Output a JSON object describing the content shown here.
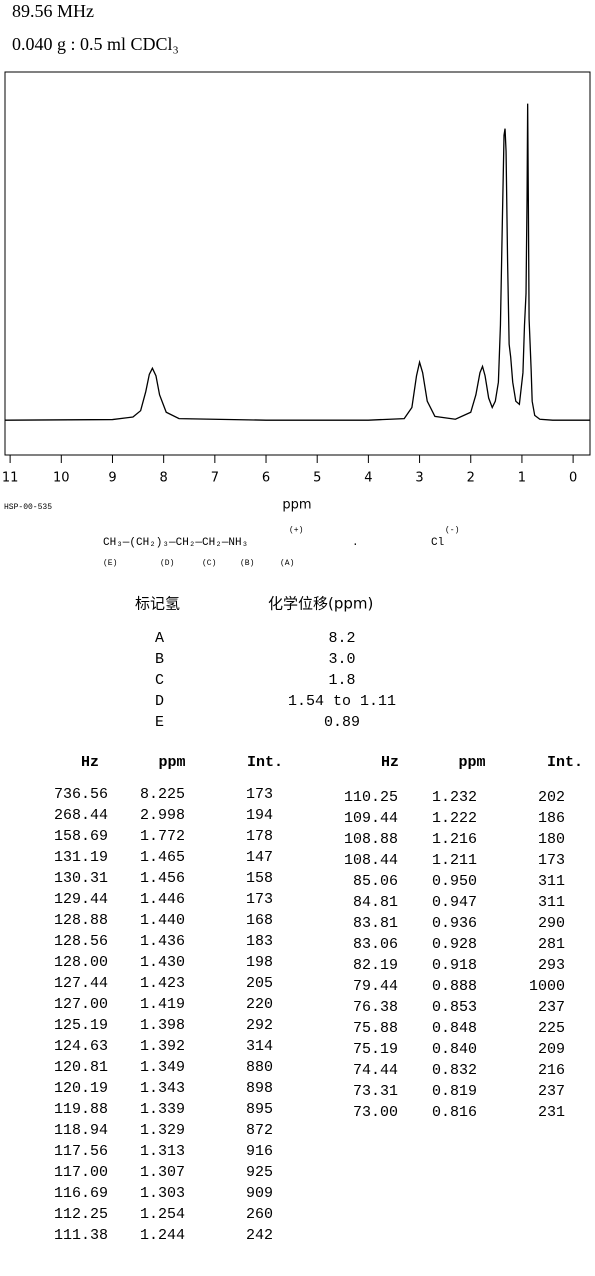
{
  "header": {
    "frequency": "89.56 MHz",
    "sample": "0.040 g : 0.5 ml CDCl₃"
  },
  "chart_data": {
    "type": "line",
    "x_label": "ppm",
    "code": "HSP-00-535",
    "color": "#000000",
    "xlim": [
      11.1,
      -0.33
    ],
    "ylim": [
      -110,
      1100
    ],
    "xticks": [
      11,
      10,
      9,
      8,
      7,
      6,
      5,
      4,
      3,
      2,
      1,
      0
    ],
    "x": [
      11.1,
      9.0,
      8.6,
      8.45,
      8.35,
      8.28,
      8.22,
      8.15,
      8.08,
      7.95,
      7.7,
      6.0,
      4.0,
      3.3,
      3.15,
      3.06,
      3.0,
      2.94,
      2.85,
      2.7,
      2.3,
      2.0,
      1.9,
      1.82,
      1.77,
      1.72,
      1.65,
      1.58,
      1.52,
      1.46,
      1.42,
      1.38,
      1.35,
      1.33,
      1.31,
      1.28,
      1.25,
      1.22,
      1.18,
      1.12,
      1.05,
      0.98,
      0.95,
      0.92,
      0.9,
      0.888,
      0.875,
      0.86,
      0.84,
      0.82,
      0.8,
      0.75,
      0.65,
      0.4,
      -0.33
    ],
    "values": [
      0,
      2,
      10,
      30,
      90,
      145,
      164,
      140,
      80,
      25,
      5,
      0,
      0,
      5,
      40,
      140,
      183,
      150,
      60,
      12,
      3,
      25,
      80,
      150,
      170,
      140,
      70,
      40,
      60,
      120,
      300,
      650,
      900,
      921,
      850,
      500,
      240,
      200,
      120,
      60,
      50,
      150,
      300,
      400,
      700,
      1000,
      700,
      320,
      240,
      160,
      60,
      15,
      3,
      0,
      0
    ]
  },
  "structure": {
    "formula": "CH₃—(CH₂)₃—CH₂—CH₂—NH₃",
    "charge": "(+)",
    "separator": ".",
    "anion": "Cl",
    "anion_charge": "(-)",
    "labels": [
      "(E)",
      "(D)",
      "(C)",
      "(B)",
      "(A)"
    ]
  },
  "assignments": {
    "headers": [
      "标记氢",
      "化学位移(ppm)"
    ],
    "rows": [
      [
        "A",
        "8.2"
      ],
      [
        "B",
        "3.0"
      ],
      [
        "C",
        "1.8"
      ],
      [
        "D",
        "1.54 to 1.11"
      ],
      [
        "E",
        "0.89"
      ]
    ]
  },
  "peaks": {
    "left": {
      "headers": [
        "Hz",
        "ppm",
        "Int."
      ],
      "rows": [
        [
          "736.56",
          "8.225",
          "173"
        ],
        [
          "268.44",
          "2.998",
          "194"
        ],
        [
          "158.69",
          "1.772",
          "178"
        ],
        [
          "131.19",
          "1.465",
          "147"
        ],
        [
          "130.31",
          "1.456",
          "158"
        ],
        [
          "129.44",
          "1.446",
          "173"
        ],
        [
          "128.88",
          "1.440",
          "168"
        ],
        [
          "128.56",
          "1.436",
          "183"
        ],
        [
          "128.00",
          "1.430",
          "198"
        ],
        [
          "127.44",
          "1.423",
          "205"
        ],
        [
          "127.00",
          "1.419",
          "220"
        ],
        [
          "125.19",
          "1.398",
          "292"
        ],
        [
          "124.63",
          "1.392",
          "314"
        ],
        [
          "120.81",
          "1.349",
          "880"
        ],
        [
          "120.19",
          "1.343",
          "898"
        ],
        [
          "119.88",
          "1.339",
          "895"
        ],
        [
          "118.94",
          "1.329",
          "872"
        ],
        [
          "117.56",
          "1.313",
          "916"
        ],
        [
          "117.00",
          "1.307",
          "925"
        ],
        [
          "116.69",
          "1.303",
          "909"
        ],
        [
          "112.25",
          "1.254",
          "260"
        ],
        [
          "111.38",
          "1.244",
          "242"
        ]
      ]
    },
    "right": {
      "headers": [
        "Hz",
        "ppm",
        "Int."
      ],
      "rows": [
        [
          "110.25",
          "1.232",
          "202"
        ],
        [
          "109.44",
          "1.222",
          "186"
        ],
        [
          "108.88",
          "1.216",
          "180"
        ],
        [
          "108.44",
          "1.211",
          "173"
        ],
        [
          "85.06",
          "0.950",
          "311"
        ],
        [
          "84.81",
          "0.947",
          "311"
        ],
        [
          "83.81",
          "0.936",
          "290"
        ],
        [
          "83.06",
          "0.928",
          "281"
        ],
        [
          "82.19",
          "0.918",
          "293"
        ],
        [
          "79.44",
          "0.888",
          "1000"
        ],
        [
          "76.38",
          "0.853",
          "237"
        ],
        [
          "75.88",
          "0.848",
          "225"
        ],
        [
          "75.19",
          "0.840",
          "209"
        ],
        [
          "74.44",
          "0.832",
          "216"
        ],
        [
          "73.31",
          "0.819",
          "237"
        ],
        [
          "73.00",
          "0.816",
          "231"
        ]
      ]
    }
  }
}
